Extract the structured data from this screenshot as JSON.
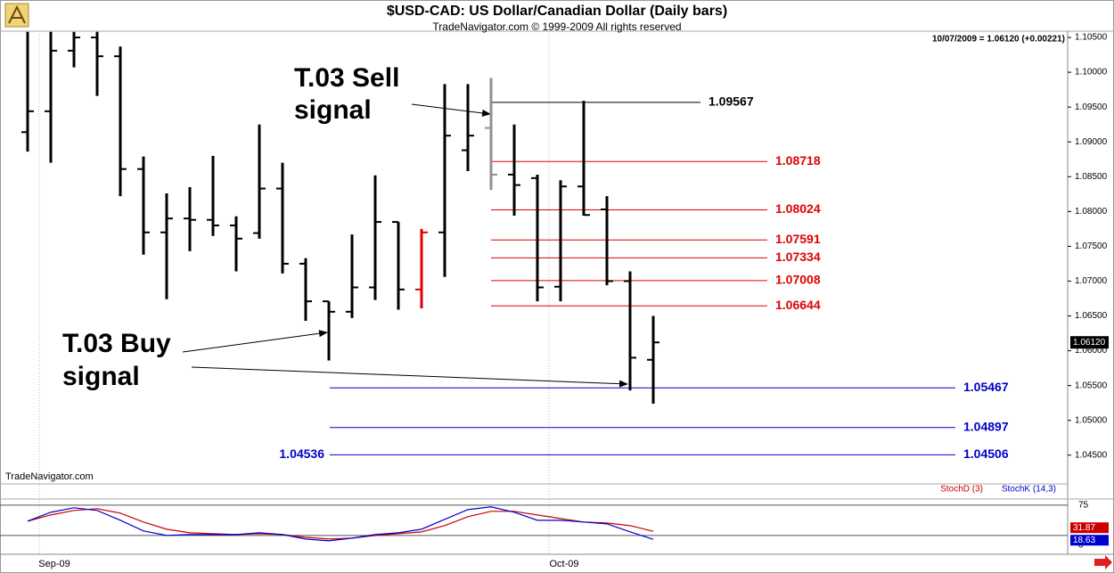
{
  "chart_data": {
    "type": "ohlc",
    "title": "$USD-CAD:  US Dollar/Canadian Dollar  (Daily bars)",
    "subtitle": "TradeNavigator.com © 1999-2009 All rights reserved",
    "quote": "10/07/2009 = 1.06120 (+0.00221)",
    "watermark": "TradeNavigator.com",
    "categories": [
      null,
      "Sep-09",
      null,
      null,
      null,
      null,
      null,
      null,
      null,
      null,
      null,
      null,
      null,
      null,
      null,
      null,
      null,
      null,
      null,
      null,
      null,
      null,
      null,
      "Oct-09",
      null,
      null,
      null,
      null
    ],
    "open": [
      1.0914,
      1.0944,
      1.1031,
      1.105,
      1.1023,
      1.0861,
      1.077,
      1.079,
      1.0788,
      1.078,
      1.0769,
      1.0833,
      1.0725,
      1.0671,
      1.0656,
      1.0691,
      1.0785,
      1.0688,
      1.077,
      1.0888,
      1.092,
      1.0853,
      1.0848,
      1.0692,
      1.0836,
      1.0803,
      1.07,
      1.0587
    ],
    "high": [
      1.1058,
      1.1058,
      1.1058,
      1.1058,
      1.1037,
      1.0879,
      1.0826,
      1.0835,
      1.088,
      1.0793,
      1.0925,
      1.087,
      1.0733,
      1.0671,
      1.0767,
      1.0852,
      1.0785,
      1.0775,
      1.0983,
      1.0983,
      1.0992,
      1.0925,
      1.0853,
      1.0845,
      1.0959,
      1.0822,
      1.0714,
      1.065
    ],
    "low": [
      1.0886,
      1.087,
      1.1007,
      1.0966,
      1.0822,
      1.0738,
      1.0674,
      1.0743,
      1.0765,
      1.0714,
      1.0761,
      1.0711,
      1.0643,
      1.0586,
      1.0647,
      1.0673,
      1.0659,
      1.0661,
      1.0706,
      1.0858,
      1.0831,
      1.0794,
      1.0671,
      1.0671,
      1.0794,
      1.0694,
      1.0543,
      1.0524
    ],
    "close": [
      1.0944,
      1.1031,
      1.105,
      1.1023,
      1.0861,
      1.077,
      1.079,
      1.0788,
      1.078,
      1.0761,
      1.0833,
      1.0725,
      1.0671,
      1.0656,
      1.0691,
      1.0785,
      1.0688,
      1.077,
      1.0909,
      1.0909,
      1.0853,
      1.0838,
      1.0691,
      1.0836,
      1.0795,
      1.07,
      1.059,
      1.0612
    ],
    "colors": [
      "#000000",
      "#000000",
      "#000000",
      "#000000",
      "#000000",
      "#000000",
      "#000000",
      "#000000",
      "#000000",
      "#000000",
      "#000000",
      "#000000",
      "#000000",
      "#000000",
      "#000000",
      "#000000",
      "#000000",
      "#e00000",
      "#000000",
      "#000000",
      "#909090",
      "#000000",
      "#000000",
      "#000000",
      "#000000",
      "#000000",
      "#000000",
      "#000000"
    ],
    "ylim": [
      1.0419,
      1.1059
    ],
    "yticks": [
      {
        "value": 1.105,
        "label": "1.10500"
      },
      {
        "value": 1.1,
        "label": "1.10000"
      },
      {
        "value": 1.095,
        "label": "1.09500"
      },
      {
        "value": 1.09,
        "label": "1.09000"
      },
      {
        "value": 1.085,
        "label": "1.08500"
      },
      {
        "value": 1.08,
        "label": "1.08000"
      },
      {
        "value": 1.075,
        "label": "1.07500"
      },
      {
        "value": 1.07,
        "label": "1.07000"
      },
      {
        "value": 1.065,
        "label": "1.06500"
      },
      {
        "value": 1.06,
        "label": "1.06000"
      },
      {
        "value": 1.055,
        "label": "1.05500"
      },
      {
        "value": 1.05,
        "label": "1.05000"
      },
      {
        "value": 1.045,
        "label": "1.04500"
      }
    ],
    "last_price": {
      "value": 1.0612,
      "label": "1.06120"
    },
    "levels": [
      {
        "value": 1.09567,
        "color": "#000000"
      },
      {
        "value": 1.08718,
        "color": "#e00000"
      },
      {
        "value": 1.08024,
        "color": "#e00000"
      },
      {
        "value": 1.07591,
        "color": "#e00000"
      },
      {
        "value": 1.07334,
        "color": "#e00000"
      },
      {
        "value": 1.07008,
        "color": "#e00000"
      },
      {
        "value": 1.06644,
        "color": "#e00000"
      },
      {
        "value": 1.05467,
        "color": "#0000cc"
      },
      {
        "value": 1.04897,
        "color": "#0000cc"
      },
      {
        "value": 1.04506,
        "color": "#0000cc",
        "left_value": 1.04536
      }
    ],
    "annotations": [
      {
        "lines": [
          "T.03 Sell",
          "signal"
        ]
      },
      {
        "lines": [
          "T.03 Buy",
          "signal"
        ]
      }
    ],
    "stochastic": {
      "type": "line",
      "ylim": [
        -6,
        85
      ],
      "yticks": [
        75,
        0
      ],
      "hlines": [
        75,
        25
      ],
      "series": [
        {
          "name": "StochD (3)",
          "color": "#cc0000",
          "values": [
            48.5,
            58.8,
            66.2,
            69.1,
            61.8,
            47.1,
            35.3,
            29.4,
            27.9,
            26.5,
            27.9,
            26.5,
            22.1,
            19.1,
            20.6,
            25.0,
            27.9,
            30.9,
            41.2,
            55.9,
            64.7,
            64.7,
            58.8,
            52.9,
            47.1,
            45.6,
            41.2,
            31.87
          ]
        },
        {
          "name": "StochK (14,3)",
          "color": "#0000cc",
          "values": [
            48.5,
            63.2,
            70.6,
            66.2,
            50.0,
            32.4,
            25.0,
            26.5,
            26.5,
            26.5,
            29.4,
            26.5,
            19.1,
            16.2,
            20.6,
            26.5,
            29.4,
            35.3,
            51.5,
            67.6,
            72.1,
            63.2,
            50.0,
            50.0,
            47.1,
            44.1,
            30.9,
            18.63
          ]
        }
      ]
    }
  }
}
